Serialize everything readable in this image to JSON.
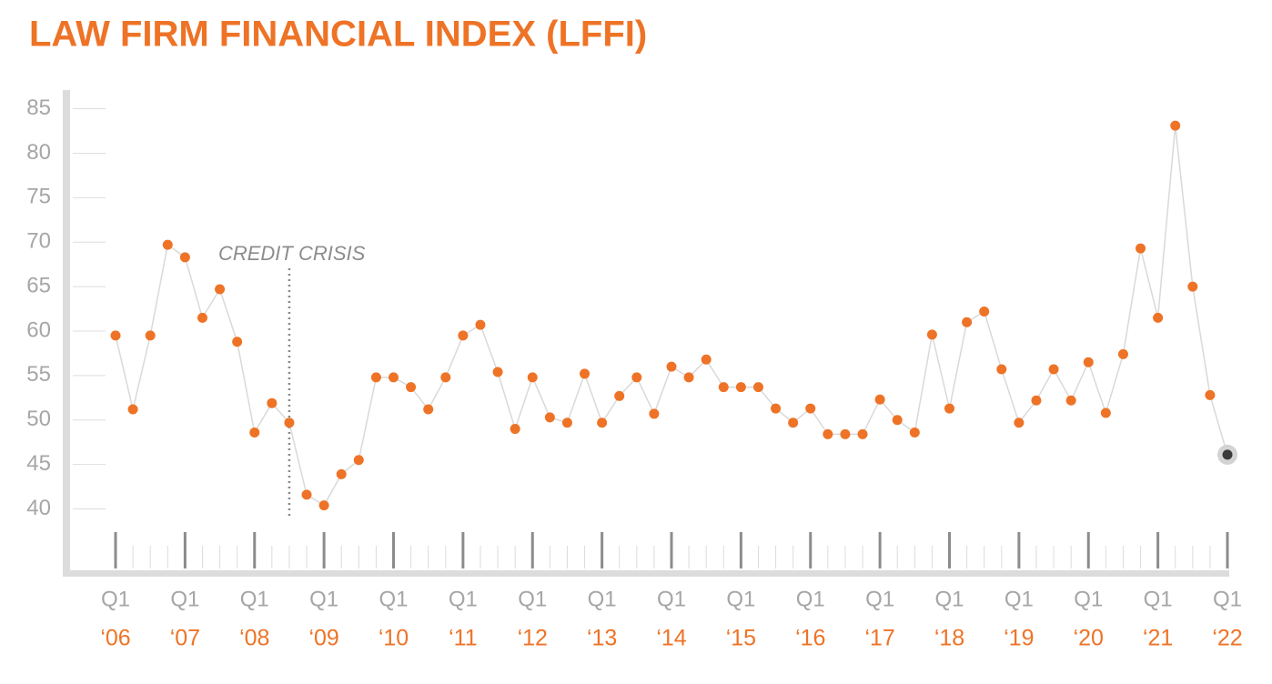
{
  "chart_data": {
    "type": "line",
    "title": "LAW FIRM FINANCIAL INDEX (LFFI)",
    "color": "#ee7326",
    "line_color": "#d9d9d9",
    "highlight_last": true,
    "highlight_color": "#3a3a3a",
    "ylim": [
      33,
      87
    ],
    "yticks": [
      40,
      45,
      50,
      55,
      60,
      65,
      70,
      75,
      80,
      85
    ],
    "grid": true,
    "annotation": {
      "text": "CREDIT CRISIS",
      "category": 10
    },
    "categories": [
      {
        "quarter": "Q1",
        "year": "‘06"
      },
      null,
      null,
      null,
      {
        "quarter": "Q1",
        "year": "‘07"
      },
      null,
      null,
      null,
      {
        "quarter": "Q1",
        "year": "‘08"
      },
      null,
      null,
      null,
      {
        "quarter": "Q1",
        "year": "‘09"
      },
      null,
      null,
      null,
      {
        "quarter": "Q1",
        "year": "‘10"
      },
      null,
      null,
      null,
      {
        "quarter": "Q1",
        "year": "‘11"
      },
      null,
      null,
      null,
      {
        "quarter": "Q1",
        "year": "‘12"
      },
      null,
      null,
      null,
      {
        "quarter": "Q1",
        "year": "‘13"
      },
      null,
      null,
      null,
      {
        "quarter": "Q1",
        "year": "‘14"
      },
      null,
      null,
      null,
      {
        "quarter": "Q1",
        "year": "‘15"
      },
      null,
      null,
      null,
      {
        "quarter": "Q1",
        "year": "‘16"
      },
      null,
      null,
      null,
      {
        "quarter": "Q1",
        "year": "‘17"
      },
      null,
      null,
      null,
      {
        "quarter": "Q1",
        "year": "‘18"
      },
      null,
      null,
      null,
      {
        "quarter": "Q1",
        "year": "‘19"
      },
      null,
      null,
      null,
      {
        "quarter": "Q1",
        "year": "‘20"
      },
      null,
      null,
      null,
      {
        "quarter": "Q1",
        "year": "‘21"
      },
      null,
      null,
      null,
      {
        "quarter": "Q1",
        "year": "‘22"
      }
    ],
    "values": [
      59.5,
      51.2,
      59.5,
      69.7,
      68.3,
      61.5,
      64.7,
      58.8,
      48.6,
      51.9,
      49.7,
      41.6,
      40.4,
      43.9,
      45.5,
      54.8,
      54.8,
      53.7,
      51.2,
      54.8,
      59.5,
      60.7,
      55.4,
      49.0,
      54.8,
      50.3,
      49.7,
      55.2,
      49.7,
      52.7,
      54.8,
      50.7,
      56.0,
      54.8,
      56.8,
      53.7,
      53.7,
      53.7,
      51.3,
      49.7,
      51.3,
      48.4,
      48.4,
      48.4,
      52.3,
      50.0,
      48.6,
      59.6,
      51.3,
      61.0,
      62.2,
      55.7,
      49.7,
      52.2,
      55.7,
      52.2,
      56.5,
      50.8,
      57.4,
      69.3,
      61.5,
      83.1,
      65.0,
      52.8,
      46.1
    ]
  }
}
